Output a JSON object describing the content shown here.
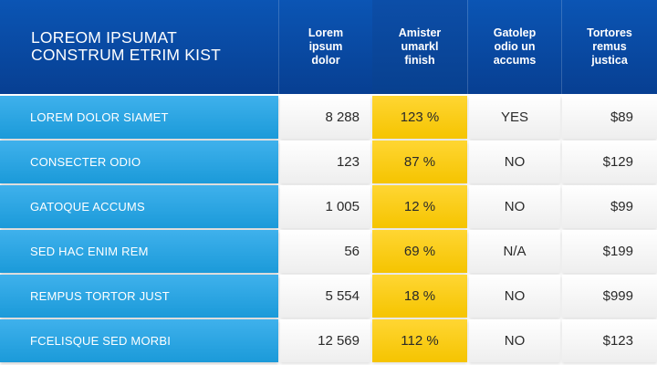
{
  "title": {
    "line1": "LOREOM IPSUMAT",
    "line2": "CONSTRUM ETRIM KIST"
  },
  "columns": [
    {
      "label": "Lorem\nipsum\ndolor"
    },
    {
      "label": "Amister\numarkl\nfinish"
    },
    {
      "label": "Gatolep\nodio un\naccums"
    },
    {
      "label": "Tortores\nremus\njustica"
    }
  ],
  "rows": [
    {
      "label": "LOREM DOLOR SIAMET",
      "values": [
        "8 288",
        "123 %",
        "YES",
        "$89"
      ]
    },
    {
      "label": "CONSECTER ODIO",
      "values": [
        "123",
        "87 %",
        "NO",
        "$129"
      ]
    },
    {
      "label": "GATOQUE ACCUMS",
      "values": [
        "1 005",
        "12 %",
        "NO",
        "$99"
      ]
    },
    {
      "label": "SED HAC ENIM REM",
      "values": [
        "56",
        "69 %",
        "N/A",
        "$199"
      ]
    },
    {
      "label": "REMPUS TORTOR JUST",
      "values": [
        "5 554",
        "18 %",
        "NO",
        "$999"
      ]
    },
    {
      "label": "FCELISQUE SED MORBI",
      "values": [
        "12 569",
        "112 %",
        "NO",
        "$123"
      ]
    }
  ],
  "colors": {
    "header_blue": "#0b55b4",
    "row_label_blue": "#2aa5e3",
    "highlight_yellow": "#ffd21f",
    "cell_white": "#f7f7f7"
  }
}
